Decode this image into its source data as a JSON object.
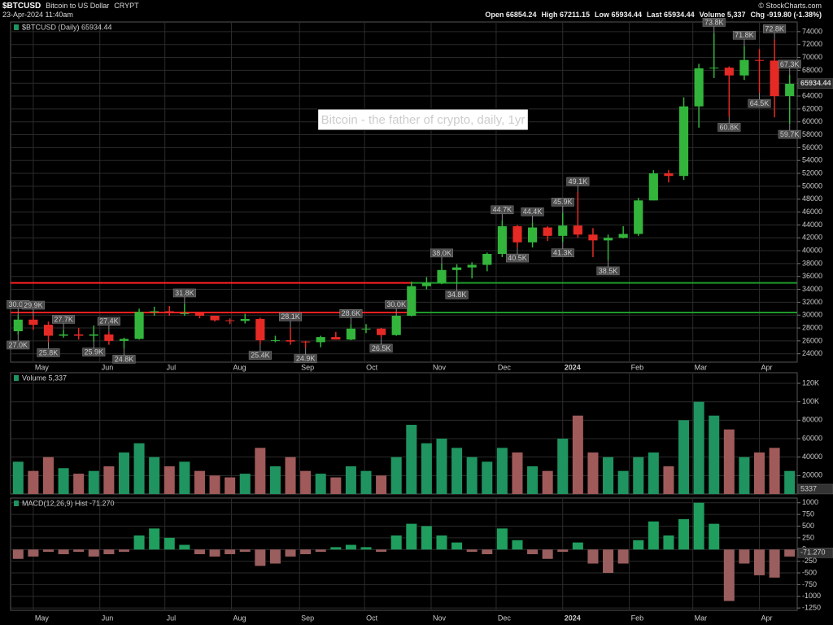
{
  "header": {
    "symbol": "$BTCUSD",
    "name": "Bitcoin to US Dollar",
    "exchange": "CRYPT",
    "timestamp": "23-Apr-2024 11:40am",
    "stats": [
      "Open 66854.24",
      "High 67211.15",
      "Low 65934.44",
      "Last 65934.44",
      "Volume 5,337",
      "Chg -919.80 (-1.38%)"
    ],
    "copyright": "© StockCharts.com"
  },
  "chart_data": [
    {
      "type": "candlestick",
      "legend": "$BTCUSD (Daily) 65934.44",
      "title": "Bitcoin - the father of crypto, daily, 1yr",
      "last": 65934.44,
      "categories": [
        null,
        null,
        null,
        null,
        null,
        null,
        null,
        null,
        null,
        null,
        null,
        null,
        null,
        null,
        null,
        null,
        null,
        null,
        null,
        null,
        null,
        null,
        null,
        null,
        null,
        null,
        null,
        null,
        null,
        null,
        null,
        null,
        null,
        null,
        null,
        null,
        null,
        null,
        null,
        null,
        null,
        null,
        null,
        null,
        null,
        null,
        null,
        null,
        null,
        null,
        null,
        null
      ],
      "open": [
        27500,
        29300,
        28500,
        26800,
        27000,
        26800,
        27000,
        26000,
        26300,
        30500,
        30600,
        30300,
        30300,
        29900,
        29200,
        29100,
        29400,
        26100,
        26100,
        25900,
        25800,
        26600,
        26200,
        27900,
        27900,
        26900,
        29900,
        34500,
        35000,
        37000,
        37400,
        37800,
        39500,
        43800,
        41300,
        43600,
        42300,
        43900,
        42500,
        41600,
        42000,
        42600,
        47800,
        52000,
        51600,
        62400,
        68300,
        68400,
        67200,
        69600,
        69500,
        64000
      ],
      "high": [
        30000,
        29900,
        29000,
        27700,
        28000,
        28400,
        27400,
        26500,
        31000,
        31300,
        31400,
        31800,
        30400,
        29900,
        29500,
        30200,
        29600,
        26800,
        28100,
        26000,
        26800,
        27400,
        28600,
        28600,
        28000,
        30000,
        35200,
        35900,
        38000,
        37900,
        38200,
        39700,
        44700,
        44000,
        44400,
        43800,
        45900,
        49100,
        43500,
        42500,
        43800,
        48200,
        52500,
        52500,
        63800,
        69000,
        73800,
        68600,
        71800,
        71300,
        72800,
        67300
      ],
      "low": [
        27000,
        27700,
        25800,
        26500,
        26200,
        25900,
        25400,
        24800,
        26200,
        29900,
        29900,
        29900,
        29500,
        29000,
        28600,
        28700,
        25400,
        25800,
        25400,
        24900,
        25000,
        26400,
        26100,
        27200,
        26500,
        26800,
        29800,
        34000,
        34800,
        34800,
        35700,
        36800,
        39000,
        40500,
        40500,
        41500,
        41300,
        42000,
        39000,
        38500,
        41900,
        42300,
        47800,
        50600,
        51000,
        59100,
        66800,
        60800,
        66500,
        64500,
        60700,
        59700
      ],
      "close": [
        29300,
        28500,
        26800,
        27000,
        26800,
        27000,
        26000,
        26300,
        30500,
        30600,
        30300,
        30300,
        29900,
        29200,
        29100,
        29400,
        26100,
        26100,
        25900,
        25800,
        26600,
        26200,
        27900,
        27900,
        26900,
        29900,
        34500,
        35000,
        37000,
        37400,
        37800,
        39500,
        43800,
        41300,
        43600,
        42300,
        43900,
        42500,
        41600,
        42000,
        42600,
        47800,
        52000,
        51600,
        62400,
        68300,
        68400,
        67200,
        69600,
        69500,
        64000,
        65900
      ],
      "up_color": "#33b53c",
      "down_color": "#e52a25",
      "ylim": [
        22700,
        75500
      ],
      "yticks": [
        24000,
        26000,
        28000,
        30000,
        32000,
        34000,
        36000,
        38000,
        40000,
        42000,
        44000,
        46000,
        48000,
        50000,
        52000,
        54000,
        56000,
        58000,
        60000,
        62000,
        64000,
        66000,
        68000,
        70000,
        72000,
        74000
      ],
      "xlim": [
        -0.5,
        51.5
      ],
      "xticks": [
        {
          "value": 1,
          "label": "May"
        },
        {
          "value": 5.4,
          "label": "Jun"
        },
        {
          "value": 9.7,
          "label": "Jul"
        },
        {
          "value": 14.1,
          "label": "Aug"
        },
        {
          "value": 18.6,
          "label": "Sep"
        },
        {
          "value": 22.9,
          "label": "Oct"
        },
        {
          "value": 27.3,
          "label": "Nov"
        },
        {
          "value": 31.6,
          "label": "Dec"
        },
        {
          "value": 36.0,
          "label": "2024"
        },
        {
          "value": 40.4,
          "label": "Feb"
        },
        {
          "value": 44.6,
          "label": "Mar"
        },
        {
          "value": 49.0,
          "label": "Apr"
        }
      ],
      "grid": true,
      "hlines": [
        {
          "value": 35000,
          "colors": [
            "#ff2020",
            "#1f9a2a"
          ],
          "break_x": 26
        },
        {
          "value": 30400,
          "colors": [
            "#ff2020",
            "#1f9a2a"
          ],
          "break_x": 26
        }
      ],
      "annotations": [
        {
          "value": 30000,
          "label": "30.0K",
          "x": 0,
          "side": "above"
        },
        {
          "value": 27000,
          "label": "27.0K",
          "x": 0,
          "side": "below"
        },
        {
          "value": 29900,
          "label": "29.9K",
          "x": 1,
          "side": "above"
        },
        {
          "value": 27700,
          "label": "27.7K",
          "x": 3,
          "side": "above"
        },
        {
          "value": 25800,
          "label": "25.8K",
          "x": 2,
          "side": "below"
        },
        {
          "value": 25900,
          "label": "25.9K",
          "x": 5,
          "side": "below"
        },
        {
          "value": 27400,
          "label": "27.4K",
          "x": 6,
          "side": "above"
        },
        {
          "value": 24800,
          "label": "24.8K",
          "x": 7,
          "side": "below"
        },
        {
          "value": 31800,
          "label": "31.8K",
          "x": 11,
          "side": "above"
        },
        {
          "value": 25400,
          "label": "25.4K",
          "x": 16,
          "side": "below"
        },
        {
          "value": 28100,
          "label": "28.1K",
          "x": 18,
          "side": "above"
        },
        {
          "value": 24900,
          "label": "24.9K",
          "x": 19,
          "side": "below"
        },
        {
          "value": 28600,
          "label": "28.6K",
          "x": 22,
          "side": "above"
        },
        {
          "value": 26500,
          "label": "26.5K",
          "x": 24,
          "side": "below"
        },
        {
          "value": 30000,
          "label": "30.0K",
          "x": 25,
          "side": "above"
        },
        {
          "value": 38000,
          "label": "38.0K",
          "x": 28,
          "side": "above"
        },
        {
          "value": 34800,
          "label": "34.8K",
          "x": 29,
          "side": "below"
        },
        {
          "value": 44700,
          "label": "44.7K",
          "x": 32,
          "side": "above"
        },
        {
          "value": 40500,
          "label": "40.5K",
          "x": 33,
          "side": "below"
        },
        {
          "value": 44400,
          "label": "44.4K",
          "x": 34,
          "side": "above"
        },
        {
          "value": 41300,
          "label": "41.3K",
          "x": 36,
          "side": "below"
        },
        {
          "value": 45900,
          "label": "45.9K",
          "x": 36,
          "side": "above"
        },
        {
          "value": 49100,
          "label": "49.1K",
          "x": 37,
          "side": "above"
        },
        {
          "value": 38500,
          "label": "38.5K",
          "x": 39,
          "side": "below"
        },
        {
          "value": 73800,
          "label": "73.8K",
          "x": 46,
          "side": "above"
        },
        {
          "value": 60800,
          "label": "60.8K",
          "x": 47,
          "side": "below"
        },
        {
          "value": 71800,
          "label": "71.8K",
          "x": 48,
          "side": "above"
        },
        {
          "value": 64500,
          "label": "64.5K",
          "x": 49,
          "side": "below"
        },
        {
          "value": 72800,
          "label": "72.8K",
          "x": 50,
          "side": "above"
        },
        {
          "value": 59700,
          "label": "59.7K",
          "x": 51,
          "side": "below"
        },
        {
          "value": 67300,
          "label": "67.3K",
          "x": 51,
          "side": "above"
        }
      ]
    },
    {
      "type": "bar",
      "legend": "Volume 5,337",
      "last": 5337,
      "up_color": "#1f9460",
      "down_color": "#a05a5a",
      "categories": [
        null,
        null,
        null,
        null,
        null,
        null,
        null,
        null,
        null,
        null,
        null,
        null,
        null,
        null,
        null,
        null,
        null,
        null,
        null,
        null,
        null,
        null,
        null,
        null,
        null,
        null,
        null,
        null,
        null,
        null,
        null,
        null,
        null,
        null,
        null,
        null,
        null,
        null,
        null,
        null,
        null,
        null,
        null,
        null,
        null,
        null,
        null,
        null,
        null,
        null,
        null,
        null
      ],
      "values": [
        35000,
        25000,
        40000,
        28000,
        22000,
        25000,
        30000,
        45000,
        55000,
        40000,
        30000,
        35000,
        25000,
        20000,
        18000,
        22000,
        50000,
        30000,
        40000,
        25000,
        22000,
        18000,
        30000,
        25000,
        20000,
        40000,
        75000,
        55000,
        60000,
        50000,
        40000,
        35000,
        50000,
        45000,
        30000,
        25000,
        60000,
        85000,
        45000,
        40000,
        25000,
        40000,
        45000,
        30000,
        80000,
        100000,
        85000,
        70000,
        40000,
        45000,
        50000,
        25000
      ],
      "ylim": [
        0,
        131500
      ],
      "yticks": [
        20000,
        40000,
        60000,
        80000,
        {
          "value": 100000,
          "label": "100K"
        },
        {
          "value": 120000,
          "label": "120K"
        }
      ],
      "grid": true
    },
    {
      "type": "bar",
      "legend": "MACD(12,26,9) Hist -71.270",
      "last": {
        "value": -71.27,
        "label": "-71.270"
      },
      "up_color": "#1f9e5e",
      "down_color": "#9a5e5e",
      "categories": [
        null,
        null,
        null,
        null,
        null,
        null,
        null,
        null,
        null,
        null,
        null,
        null,
        null,
        null,
        null,
        null,
        null,
        null,
        null,
        null,
        null,
        null,
        null,
        null,
        null,
        null,
        null,
        null,
        null,
        null,
        null,
        null,
        null,
        null,
        null,
        null,
        null,
        null,
        null,
        null,
        null,
        null,
        null,
        null,
        null,
        null,
        null,
        null,
        null,
        null,
        null,
        null
      ],
      "values": [
        -200,
        -150,
        -50,
        -100,
        -50,
        -150,
        -100,
        -50,
        300,
        450,
        250,
        100,
        -100,
        -150,
        -100,
        -50,
        -350,
        -300,
        -150,
        -100,
        -50,
        50,
        100,
        50,
        -50,
        300,
        550,
        500,
        300,
        150,
        -50,
        -100,
        450,
        200,
        -100,
        -200,
        -50,
        150,
        -300,
        -500,
        -300,
        200,
        600,
        300,
        650,
        1000,
        550,
        -1100,
        -300,
        -550,
        -600,
        -150
      ],
      "ylim": [
        -1300,
        1100
      ],
      "yticks": [
        1000,
        750,
        500,
        250,
        0,
        -250,
        -500,
        -750,
        -1000,
        -1250
      ],
      "grid": true
    }
  ]
}
